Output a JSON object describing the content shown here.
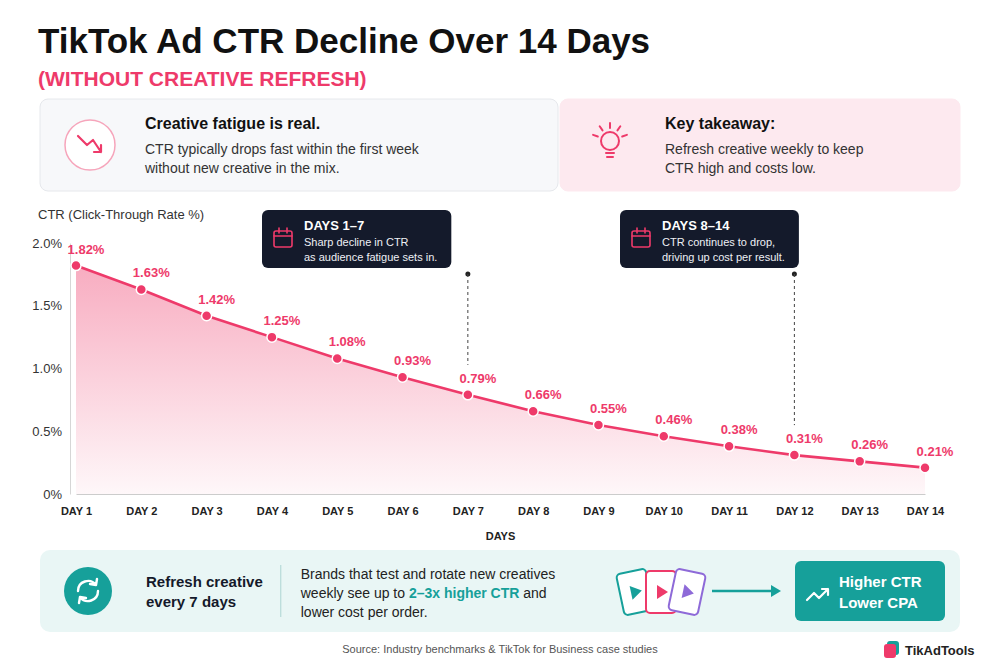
{
  "header": {
    "title": "TikTok Ad CTR Decline Over 14 Days",
    "subtitle": "(WITHOUT CREATIVE REFRESH)"
  },
  "cards": [
    {
      "title": "Creative fatigue is real.",
      "lines": [
        "CTR typically drops fast within the first week",
        "without new creative in the mix."
      ]
    },
    {
      "title": "Key takeaway:",
      "lines": [
        "Refresh creative weekly to keep",
        "CTR high and costs low."
      ]
    }
  ],
  "chart_data": {
    "type": "line",
    "y_label": "CTR (Click-Through Rate %)",
    "x_label": "DAYS",
    "categories": [
      "DAY 1",
      "DAY 2",
      "DAY 3",
      "DAY 4",
      "DAY 5",
      "DAY 6",
      "DAY 7",
      "DAY 8",
      "DAY 9",
      "DAY 10",
      "DAY 11",
      "DAY 12",
      "DAY 13",
      "DAY 14"
    ],
    "values": [
      1.82,
      1.63,
      1.42,
      1.25,
      1.08,
      0.93,
      0.79,
      0.66,
      0.55,
      0.46,
      0.38,
      0.31,
      0.26,
      0.21
    ],
    "value_labels": [
      "1.82%",
      "1.63%",
      "1.42%",
      "1.25%",
      "1.08%",
      "0.93%",
      "0.79%",
      "0.66%",
      "0.55%",
      "0.46%",
      "0.38%",
      "0.31%",
      "0.26%",
      "0.21%"
    ],
    "color": "#ee3a6a",
    "ylim": [
      0,
      2.0
    ],
    "yticks": [
      {
        "value": 0,
        "label": "0%"
      },
      {
        "value": 0.5,
        "label": "0.5%"
      },
      {
        "value": 1.0,
        "label": "1.0%"
      },
      {
        "value": 1.5,
        "label": "1.5%"
      },
      {
        "value": 2.0,
        "label": "2.0%"
      }
    ],
    "grid": false,
    "marker": "circle",
    "data_labels": true,
    "annotations": [
      {
        "title": "DAYS 1–7",
        "lines": [
          "Sharp decline in CTR",
          "as audience fatigue sets in."
        ],
        "x": "DAY 7"
      },
      {
        "title": "DAYS 8–14",
        "lines": [
          "CTR continues to drop,",
          "driving up cost per result."
        ],
        "x": "DAY 12"
      }
    ]
  },
  "banner": {
    "heading": [
      "Refresh creative",
      "every 7 days"
    ],
    "lines": [
      [
        {
          "text": "Brands that test and rotate new creatives"
        }
      ],
      [
        {
          "text": "weekly see up to "
        },
        {
          "text": "2–3x higher CTR",
          "emphasis": true
        },
        {
          "text": " and"
        }
      ],
      [
        {
          "text": "lower cost per order."
        }
      ]
    ],
    "badge": [
      "Higher CTR",
      "Lower CPA"
    ]
  },
  "source": "Source: Industry benchmarks & TikTok for Business case studies",
  "logo": "TikAdTools"
}
